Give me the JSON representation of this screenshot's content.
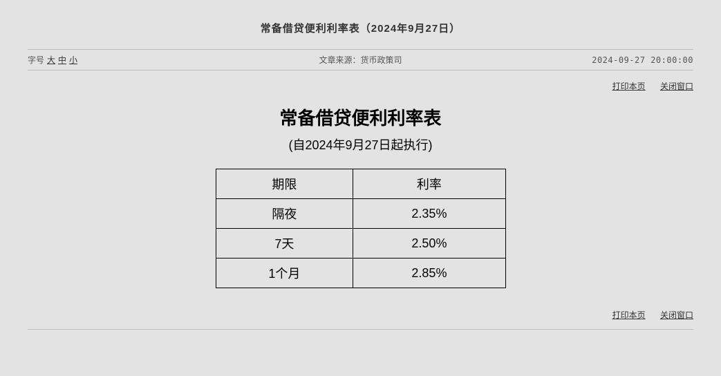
{
  "header": {
    "title": "常备借贷便利利率表（2024年9月27日）"
  },
  "meta": {
    "fontsize_label": "字号",
    "fontsize_large": "大",
    "fontsize_medium": "中",
    "fontsize_small": "小",
    "source_label": "文章来源：",
    "source_value": "货币政策司",
    "timestamp": "2024-09-27 20:00:00"
  },
  "actions": {
    "print": "打印本页",
    "close": "关闭窗口"
  },
  "content": {
    "title": "常备借贷便利利率表",
    "subtitle": "(自2024年9月27日起执行)"
  },
  "table": {
    "columns": [
      "期限",
      "利率"
    ],
    "rows": [
      [
        "隔夜",
        "2.35%"
      ],
      [
        "7天",
        "2.50%"
      ],
      [
        "1个月",
        "2.85%"
      ]
    ],
    "col_widths": [
      "50%",
      "50%"
    ],
    "border_color": "#000000",
    "cell_fontsize": 18
  },
  "colors": {
    "page_bg": "#e3e3e3",
    "text_primary": "#333333",
    "text_content": "#000000",
    "divider": "#bbbbbb"
  }
}
